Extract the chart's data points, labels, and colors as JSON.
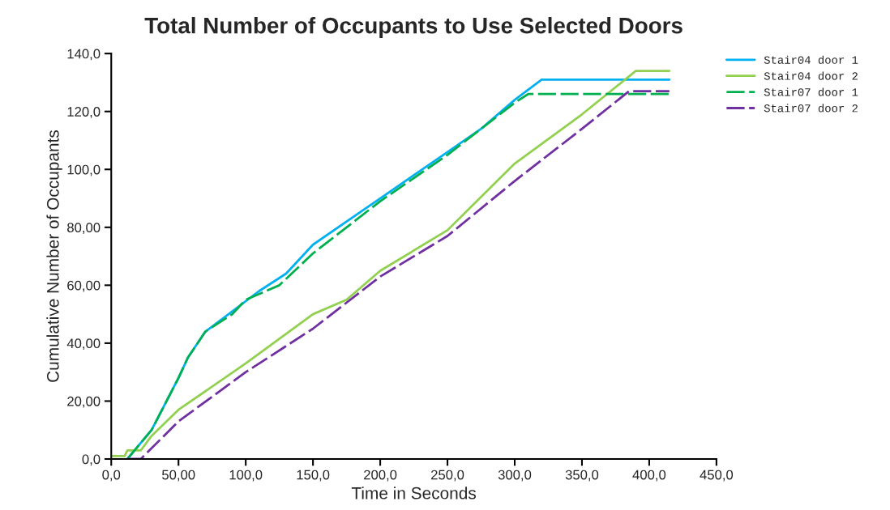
{
  "chart_data": {
    "type": "line",
    "title": "Total Number of Occupants to Use Selected Doors",
    "xlabel": "Time in Seconds",
    "ylabel": "Cumulative Number of Occupants",
    "xlim": [
      0,
      450
    ],
    "xticks": [
      {
        "value": 0,
        "label": "0,0"
      },
      {
        "value": 50,
        "label": "50,00"
      },
      {
        "value": 100,
        "label": "100,0"
      },
      {
        "value": 150,
        "label": "150,0"
      },
      {
        "value": 200,
        "label": "200,0"
      },
      {
        "value": 250,
        "label": "250,0"
      },
      {
        "value": 300,
        "label": "300,0"
      },
      {
        "value": 350,
        "label": "350,0"
      },
      {
        "value": 400,
        "label": "400,0"
      },
      {
        "value": 450,
        "label": "450,0"
      }
    ],
    "ylim": [
      0,
      140
    ],
    "yticks": [
      {
        "value": 0,
        "label": "0,0"
      },
      {
        "value": 20,
        "label": "20,00"
      },
      {
        "value": 40,
        "label": "40,00"
      },
      {
        "value": 60,
        "label": "60,00"
      },
      {
        "value": 80,
        "label": "80,00"
      },
      {
        "value": 100,
        "label": "100,0"
      },
      {
        "value": 120,
        "label": "120,0"
      },
      {
        "value": 140,
        "label": "140,0"
      }
    ],
    "grid": false,
    "legend": "top right",
    "marker": "none",
    "series": [
      {
        "name": "Stair04 door 1",
        "color": "#00b0f0",
        "line_style": "solid",
        "x": [
          12,
          30,
          50,
          57,
          70,
          90,
          110,
          130,
          150,
          175,
          200,
          225,
          250,
          275,
          300,
          320,
          415
        ],
        "values": [
          0,
          10,
          28,
          35,
          44,
          51,
          58,
          64,
          74,
          82,
          90,
          98,
          106,
          114,
          124,
          131,
          131
        ]
      },
      {
        "name": "Stair04 door 2",
        "color": "#92d050",
        "line_style": "solid",
        "x": [
          0,
          10,
          12,
          22,
          30,
          50,
          100,
          150,
          175,
          200,
          250,
          300,
          350,
          390,
          415
        ],
        "values": [
          1,
          1,
          3,
          3,
          8,
          17,
          33,
          50,
          55,
          65,
          79,
          102,
          119,
          134,
          134
        ]
      },
      {
        "name": "Stair07 door 1",
        "color": "#00b050",
        "line_style": "dashed",
        "x": [
          12,
          30,
          50,
          57,
          70,
          90,
          100,
          125,
          150,
          175,
          200,
          250,
          300,
          310,
          415
        ],
        "values": [
          0,
          10,
          28,
          35,
          44,
          50,
          55,
          60,
          71,
          80,
          89,
          105,
          123,
          126,
          126
        ]
      },
      {
        "name": "Stair07 door 2",
        "color": "#7030a0",
        "line_style": "dashed",
        "x": [
          12,
          22,
          50,
          100,
          150,
          200,
          250,
          300,
          350,
          385,
          415
        ],
        "values": [
          0,
          0,
          13,
          30,
          45,
          63,
          77,
          96,
          114,
          127,
          127
        ]
      }
    ]
  }
}
